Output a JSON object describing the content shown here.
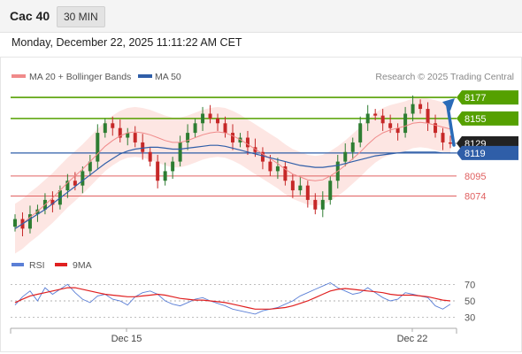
{
  "header": {
    "symbol": "Cac 40",
    "timeframe": "30 MIN",
    "datetime": "Monday, December 22, 2025 11:11:22 AM CET"
  },
  "legend": {
    "items": [
      {
        "label": "MA 20 + Bollinger Bands",
        "color": "#f08a8a"
      },
      {
        "label": "MA 50",
        "color": "#2f5ea8"
      }
    ],
    "watermark": "Research © 2025 Trading Central"
  },
  "rsi_legend": {
    "items": [
      {
        "label": "RSI",
        "color": "#5b7fd6"
      },
      {
        "label": "9MA",
        "color": "#e02020"
      }
    ]
  },
  "colors": {
    "resistance": "#55a000",
    "support": "#e06060",
    "current": "#222222",
    "ma50": "#2f5ea8",
    "band_fill": "#fde3e0",
    "candle_up": "#2e7d32",
    "candle_down": "#c62828",
    "arrow": "#2a6bb8"
  },
  "chart_data": [
    {
      "type": "candlestick",
      "price_range": [
        8020,
        8190
      ],
      "levels": [
        {
          "value": 8177,
          "label": "8177",
          "kind": "resistance"
        },
        {
          "value": 8155,
          "label": "8155",
          "kind": "resistance"
        },
        {
          "value": 8129,
          "label": "8129",
          "kind": "current"
        },
        {
          "value": 8119,
          "label": "8119",
          "kind": "ma50"
        },
        {
          "value": 8095,
          "label": "8095",
          "kind": "support"
        },
        {
          "value": 8074,
          "label": "8074",
          "kind": "support"
        }
      ],
      "x_ticks": [
        "Dec 15",
        "Dec 22"
      ],
      "close_series": [
        8050,
        8040,
        8055,
        8060,
        8070,
        8065,
        8080,
        8090,
        8085,
        8100,
        8110,
        8140,
        8150,
        8145,
        8135,
        8140,
        8130,
        8120,
        8110,
        8090,
        8100,
        8110,
        8130,
        8140,
        8150,
        8160,
        8155,
        8150,
        8140,
        8130,
        8135,
        8125,
        8120,
        8110,
        8100,
        8105,
        8090,
        8080,
        8085,
        8070,
        8060,
        8070,
        8090,
        8110,
        8120,
        8130,
        8150,
        8160,
        8158,
        8150,
        8145,
        8140,
        8160,
        8170,
        8165,
        8150,
        8140,
        8130,
        8129
      ],
      "ma50_series": [
        8040,
        8045,
        8050,
        8055,
        8060,
        8066,
        8072,
        8078,
        8084,
        8090,
        8096,
        8102,
        8108,
        8113,
        8118,
        8121,
        8123,
        8124,
        8125,
        8125,
        8124,
        8123,
        8123,
        8124,
        8125,
        8126,
        8127,
        8127,
        8126,
        8124,
        8122,
        8120,
        8118,
        8116,
        8114,
        8112,
        8110,
        8108,
        8106,
        8105,
        8104,
        8104,
        8105,
        8106,
        8108,
        8110,
        8112,
        8114,
        8116,
        8117,
        8118,
        8119,
        8120,
        8120,
        8120,
        8120,
        8120,
        8119,
        8119
      ],
      "ma20_series": [
        8040,
        8045,
        8052,
        8058,
        8065,
        8072,
        8080,
        8088,
        8095,
        8102,
        8110,
        8118,
        8126,
        8132,
        8137,
        8140,
        8141,
        8140,
        8138,
        8135,
        8132,
        8130,
        8130,
        8132,
        8135,
        8138,
        8140,
        8141,
        8140,
        8137,
        8133,
        8128,
        8123,
        8118,
        8113,
        8108,
        8102,
        8097,
        8094,
        8091,
        8090,
        8091,
        8095,
        8100,
        8106,
        8113,
        8120,
        8128,
        8135,
        8140,
        8143,
        8145,
        8147,
        8150,
        8151,
        8150,
        8148,
        8146,
        8144
      ],
      "band_width": 26
    },
    {
      "type": "line",
      "title": "RSI",
      "y_ticks": [
        70,
        50,
        30
      ],
      "ylim": [
        20,
        80
      ],
      "series": [
        {
          "name": "RSI",
          "values": [
            45,
            55,
            62,
            50,
            66,
            58,
            64,
            70,
            60,
            52,
            48,
            56,
            58,
            52,
            50,
            45,
            55,
            60,
            62,
            58,
            50,
            46,
            44,
            48,
            52,
            54,
            50,
            47,
            44,
            40,
            38,
            36,
            34,
            38,
            40,
            42,
            46,
            50,
            56,
            60,
            64,
            68,
            72,
            66,
            62,
            58,
            60,
            66,
            60,
            54,
            50,
            52,
            60,
            58,
            56,
            54,
            44,
            40,
            46
          ]
        },
        {
          "name": "9MA",
          "values": [
            48,
            52,
            56,
            58,
            60,
            62,
            64,
            66,
            66,
            64,
            62,
            60,
            58,
            57,
            56,
            55,
            55,
            56,
            57,
            58,
            57,
            55,
            53,
            52,
            51,
            51,
            50,
            49,
            48,
            46,
            44,
            42,
            40,
            40,
            40,
            41,
            42,
            44,
            47,
            50,
            54,
            58,
            62,
            64,
            65,
            64,
            63,
            62,
            61,
            60,
            58,
            57,
            57,
            57,
            56,
            55,
            53,
            51,
            50
          ]
        }
      ]
    }
  ]
}
